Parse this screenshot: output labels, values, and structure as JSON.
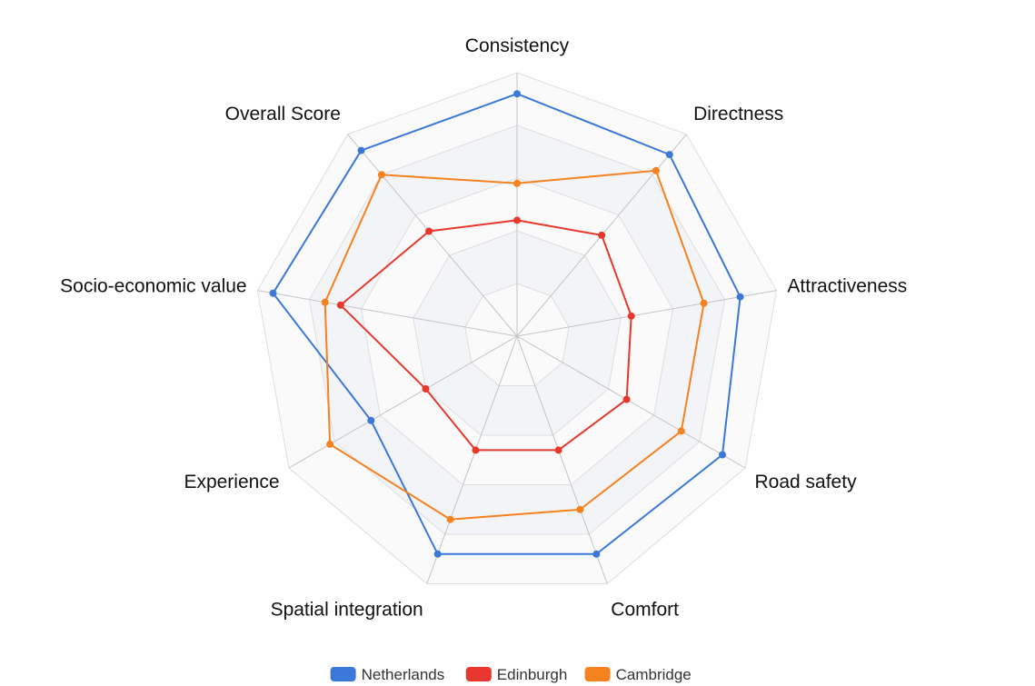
{
  "chart_data": {
    "type": "radar",
    "categories": [
      "Consistency",
      "Directness",
      "Attractiveness",
      "Road safety",
      "Comfort",
      "Spatial integration",
      "Experience",
      "Socio-economic value",
      "Overall Score"
    ],
    "rlim": [
      0,
      5
    ],
    "grid": true,
    "legend_position": "bottom",
    "series": [
      {
        "name": "Netherlands",
        "color": "#3b78d8",
        "values": [
          4.6,
          4.5,
          4.3,
          4.5,
          4.4,
          4.4,
          3.2,
          4.7,
          4.6
        ]
      },
      {
        "name": "Edinburgh",
        "color": "#e8382d",
        "values": [
          2.2,
          2.5,
          2.2,
          2.4,
          2.3,
          2.3,
          2.0,
          3.4,
          2.6
        ]
      },
      {
        "name": "Cambridge",
        "color": "#f5821f",
        "values": [
          2.9,
          4.1,
          3.6,
          3.6,
          3.5,
          3.7,
          4.1,
          3.7,
          4.0
        ]
      }
    ]
  }
}
